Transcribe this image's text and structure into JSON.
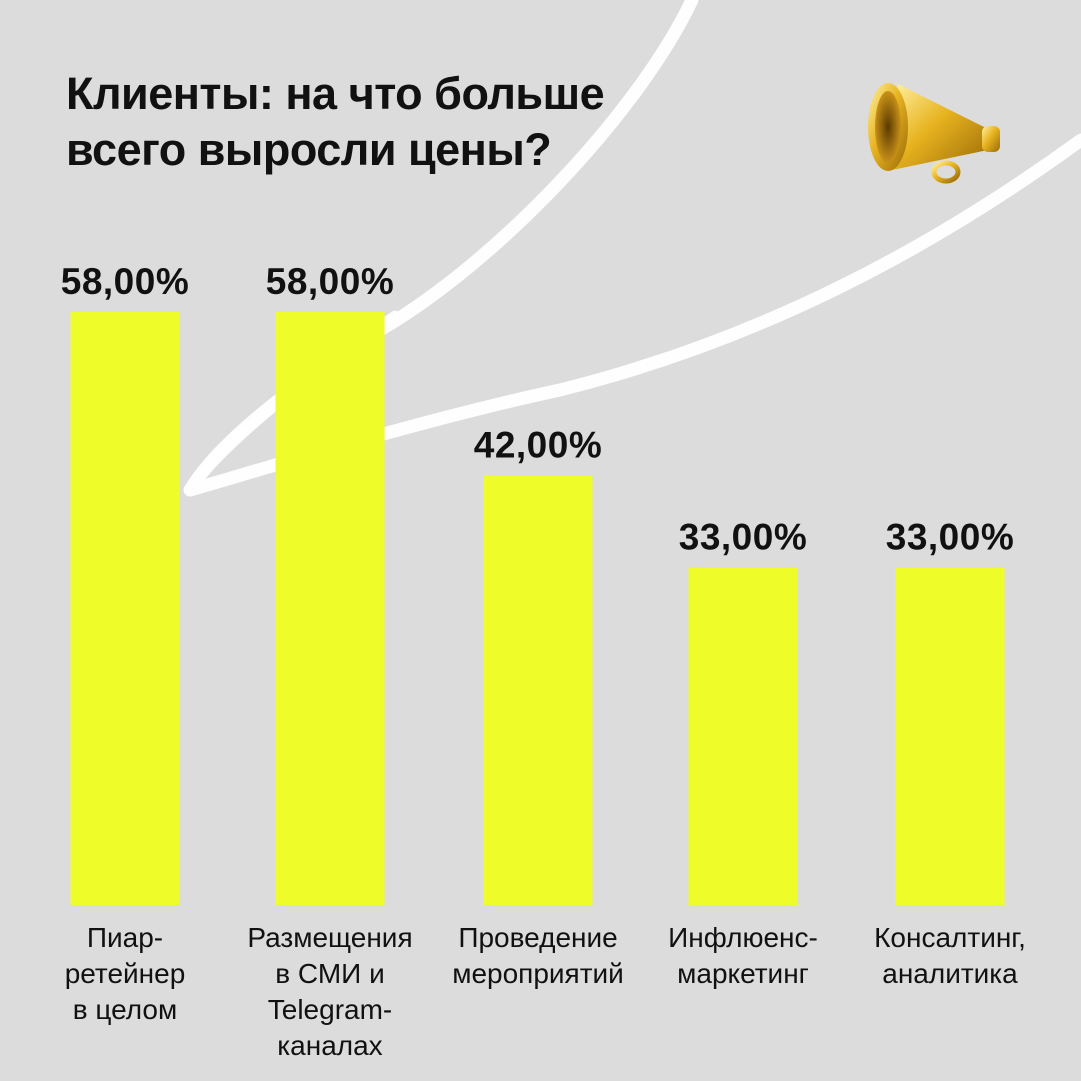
{
  "header": {
    "title_line1": "Клиенты: на что больше",
    "title_line2": "всего выросли цены?"
  },
  "decor": {
    "icon": "megaphone-icon",
    "bar_color": "#eefc2a",
    "background": "#dcdcdc",
    "stroke_color": "#ffffff"
  },
  "chart_data": {
    "type": "bar",
    "title": "Клиенты: на что больше всего выросли цены?",
    "categories": [
      [
        "Пиар-",
        "ретейнер",
        "в целом"
      ],
      [
        "Размещения",
        "в СМИ и",
        "Telegram-",
        "каналах"
      ],
      [
        "Проведение",
        "мероприятий"
      ],
      [
        "Инфлюенс-",
        "маркетинг"
      ],
      [
        "Консалтинг,",
        "аналитика"
      ]
    ],
    "values": [
      58,
      58,
      42,
      33,
      33
    ],
    "value_labels": [
      "58,00%",
      "58,00%",
      "42,00%",
      "33,00%",
      "33,00%"
    ],
    "ylim": [
      0,
      58
    ],
    "grid": false,
    "legend": "none"
  }
}
